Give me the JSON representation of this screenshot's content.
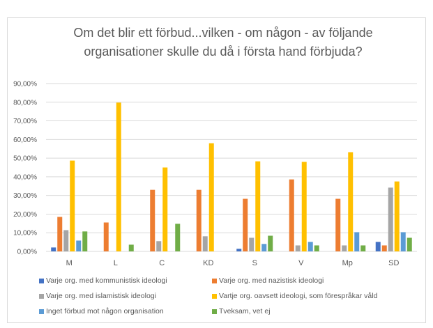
{
  "chart_data": {
    "type": "bar",
    "title": "Om det blir ett förbud...vilken - om någon - av följande organisationer skulle du då i första hand förbjuda?",
    "title_lines": [
      "Om det blir ett förbud...vilken - om någon - av följande",
      "organisationer skulle du då i första hand förbjuda?"
    ],
    "xlabel": "",
    "ylabel": "",
    "ylim": [
      0,
      90
    ],
    "yticks": [
      0,
      10,
      20,
      30,
      40,
      50,
      60,
      70,
      80,
      90
    ],
    "ytick_labels": [
      "0,00%",
      "10,00%",
      "20,00%",
      "30,00%",
      "40,00%",
      "50,00%",
      "60,00%",
      "70,00%",
      "80,00%",
      "90,00%"
    ],
    "grid": true,
    "legend_position": "bottom",
    "categories": [
      "M",
      "L",
      "C",
      "KD",
      "S",
      "V",
      "Mp",
      "SD"
    ],
    "series": [
      {
        "name": "Varje org. med kommunistisk ideologi",
        "color": "#4472c4",
        "values": [
          2.1,
          0,
          0,
          0,
          1.4,
          0,
          0,
          5.1
        ]
      },
      {
        "name": "Varje org. med nazistisk ideologi",
        "color": "#ed7d31",
        "values": [
          18.5,
          15.5,
          33.0,
          33.0,
          28.2,
          38.6,
          28.2,
          3.2
        ]
      },
      {
        "name": "Varje org. med islamistisk ideologi",
        "color": "#a5a5a5",
        "values": [
          11.4,
          0,
          5.5,
          8.1,
          7.3,
          3.2,
          3.2,
          34.2
        ]
      },
      {
        "name": "Vartje org. oavsett ideologi, som förespråkar våld",
        "color": "#ffc000",
        "values": [
          48.7,
          79.8,
          45.0,
          58.0,
          48.3,
          48.0,
          53.2,
          37.5
        ]
      },
      {
        "name": "Inget förbud mot någon organisation",
        "color": "#5b9bd5",
        "values": [
          5.8,
          0,
          0,
          0,
          4.0,
          5.1,
          10.3,
          10.3
        ]
      },
      {
        "name": "Tveksam, vet ej",
        "color": "#70ad47",
        "values": [
          10.7,
          3.6,
          14.8,
          0,
          8.4,
          3.2,
          3.2,
          7.3
        ]
      }
    ]
  }
}
